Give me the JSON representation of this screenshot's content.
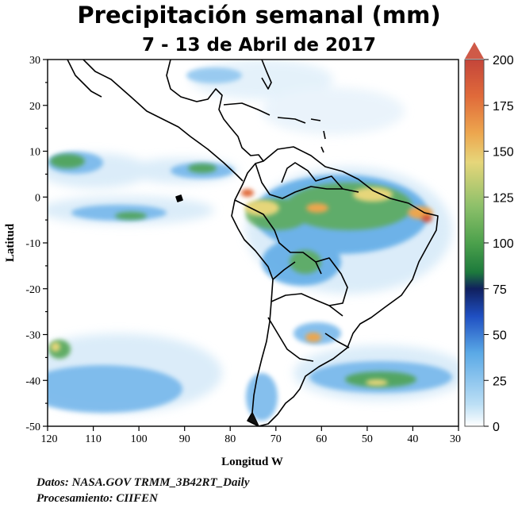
{
  "title": "Precipitación semanal (mm)",
  "subtitle": "7 - 13 de Abril de 2017",
  "axes": {
    "y_label": "Latitud",
    "x_label": "Longitud W",
    "lat_ticks": [
      "30",
      "20",
      "10",
      "0",
      "-10",
      "-20",
      "-30",
      "-40",
      "-50"
    ],
    "lon_ticks": [
      "120",
      "110",
      "100",
      "90",
      "80",
      "70",
      "60",
      "50",
      "40",
      "30"
    ]
  },
  "colorbar": {
    "ticks": [
      "200",
      "175",
      "150",
      "125",
      "100",
      "75",
      "50",
      "25",
      "0"
    ],
    "stops": [
      "#ffffff",
      "#bcdff5",
      "#5aa9e6",
      "#1f4fc2",
      "#10205e",
      "#1d7a3c",
      "#4ca14c",
      "#8dc06a",
      "#e6d67a",
      "#eda64e",
      "#e06a3a",
      "#c4453a"
    ],
    "arrow_color": "#cf5a48"
  },
  "credits": {
    "line1": "Datos: NASA.GOV TRMM_3B42RT_Daily",
    "line2": "Procesamiento: CIIFEN"
  }
}
